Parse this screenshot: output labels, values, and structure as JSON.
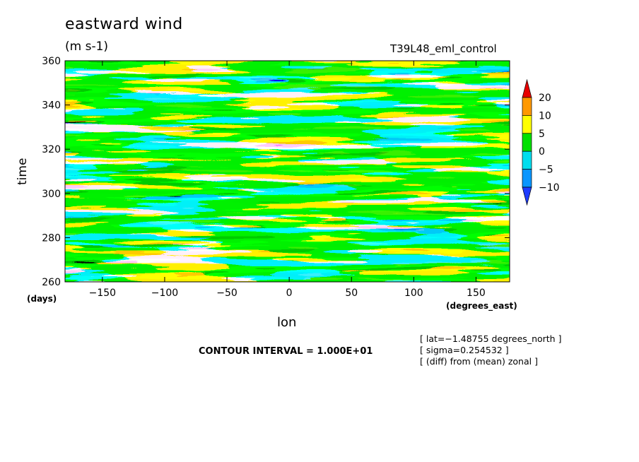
{
  "chart_data": {
    "type": "heatmap",
    "title": "eastward wind",
    "units": "(m s-1)",
    "run_label": "T39L48_eml_control",
    "xlabel": "lon",
    "ylabel": "time",
    "x_unit": "(degrees_east)",
    "y_unit": "(days)",
    "xlim": [
      -180,
      177
    ],
    "ylim": [
      260,
      360
    ],
    "x_ticks": [
      -150,
      -100,
      -50,
      0,
      50,
      100,
      150
    ],
    "y_ticks": [
      260,
      280,
      300,
      320,
      340,
      360
    ],
    "x_tick_labels": [
      "−150",
      "−100",
      "−50",
      "0",
      "50",
      "100",
      "150"
    ],
    "y_tick_labels": [
      "260",
      "280",
      "300",
      "320",
      "340",
      "360"
    ],
    "colorbar": {
      "levels": [
        -10,
        -5,
        0,
        5,
        10,
        20
      ],
      "tick_labels": [
        "−10",
        "−5",
        "0",
        "5",
        "10",
        "20"
      ],
      "colors": [
        "#1e3cff",
        "#0a96ff",
        "#00ddee",
        "#00e000",
        "#ffff00",
        "#ff9900",
        "#e80000"
      ]
    },
    "contour_interval": "CONTOUR INTERVAL = 1.000E+01",
    "notes": [
      "[ lat=−1.48755 degrees_north ]",
      "[ sigma=0.254532 ]",
      "[ (diff) from (mean) zonal ]"
    ]
  }
}
